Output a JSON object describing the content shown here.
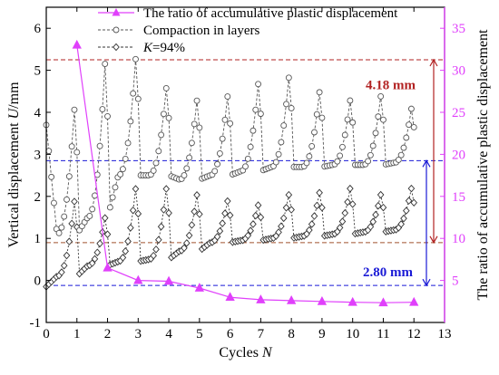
{
  "chart_data": {
    "type": "line",
    "xlabel": "Cycles N",
    "xlabel_main": "Cycles ",
    "xlabel_var": "N",
    "ylabel_left": "Vertical displacement U/mm",
    "ylabel_left_main": "Vertical displacement ",
    "ylabel_left_var": "U",
    "ylabel_left_unit": "/mm",
    "ylabel_right": "The ratio of accumulative plastic displacement",
    "xlim": [
      0,
      13
    ],
    "ylim_left": [
      -1,
      6.5
    ],
    "ylim_right": [
      0,
      37.5
    ],
    "x_ticks": [
      "0",
      "1",
      "2",
      "3",
      "4",
      "5",
      "6",
      "7",
      "8",
      "9",
      "10",
      "11",
      "12",
      "13"
    ],
    "y_left_ticks": [
      "-1",
      "0",
      "1",
      "2",
      "3",
      "4",
      "5",
      "6"
    ],
    "y_right_ticks": [
      "5",
      "10",
      "15",
      "20",
      "25",
      "30",
      "35"
    ],
    "legend": {
      "ratio": "The ratio of accumulative plastic displacement",
      "layers": "Compaction in layers",
      "k94_var": "K",
      "k94_rest": "=94%"
    },
    "colors": {
      "ratio": "#e040fb",
      "layers": "#555555",
      "k94": "#333333",
      "red_ref": "#b22222",
      "blue_ref": "#1a1ad6",
      "brown_ref": "#a0522d"
    },
    "annotations": {
      "red_label": "4.18 mm",
      "blue_label": "2.80 mm"
    },
    "ref_lines": {
      "red_top": 5.25,
      "red_bottom": 0.9,
      "blue_top": 2.85,
      "blue_bottom": -0.12
    },
    "series": [
      {
        "name": "The ratio of accumulative plastic displacement",
        "axis": "right",
        "marker": "triangle",
        "x": [
          1,
          2,
          3,
          4,
          5,
          6,
          7,
          8,
          9,
          10,
          11,
          12
        ],
        "values": [
          33,
          6.5,
          5,
          4.9,
          4.1,
          3,
          2.7,
          2.6,
          2.5,
          2.4,
          2.35,
          2.4
        ]
      },
      {
        "name": "Compaction in layers",
        "axis": "left",
        "marker": "circle",
        "cycle_peaks": [
          4.1,
          5.2,
          5.3,
          4.6,
          4.3,
          4.4,
          4.7,
          4.85,
          4.5,
          4.3,
          4.4,
          4.1
        ],
        "cycle_troughs": [
          1.1,
          1.5,
          2.5,
          2.5,
          2.4,
          2.5,
          2.6,
          2.7,
          2.7,
          2.75,
          2.75,
          2.8
        ],
        "start_value": 3.7
      },
      {
        "name": "K=94%",
        "axis": "left",
        "marker": "diamond",
        "cycle_peaks": [
          1.9,
          1.5,
          2.2,
          2.2,
          2.05,
          1.9,
          1.8,
          2.05,
          2.1,
          2.2,
          2.05,
          2.2
        ],
        "cycle_troughs": [
          0.1,
          0.35,
          0.45,
          0.5,
          0.7,
          0.9,
          0.95,
          1.0,
          1.05,
          1.1,
          1.15,
          1.2
        ],
        "start_value": -0.15
      }
    ]
  }
}
